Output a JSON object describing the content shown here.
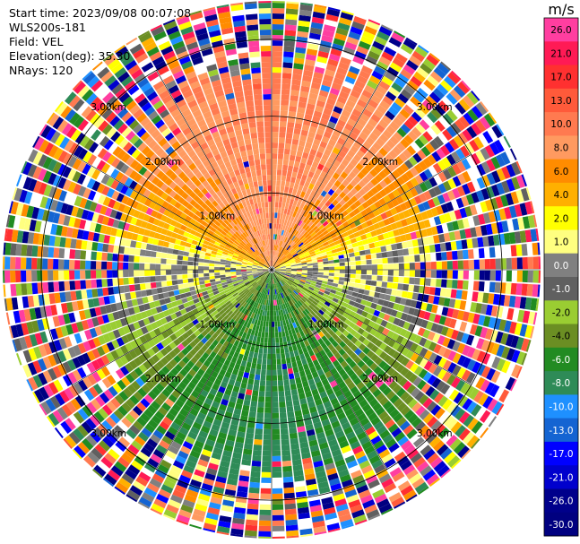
{
  "header": {
    "start_time": "Start time: 2023/09/08 00:07:08",
    "instrument": "WLS200s-181",
    "field": "Field: VEL",
    "elevation": "Elevation(deg): 35.30",
    "nrays": "NRays: 120"
  },
  "colorbar": {
    "unit": "m/s",
    "ticks": [
      "26.0",
      "21.0",
      "17.0",
      "13.0",
      "10.0",
      "8.0",
      "6.0",
      "4.0",
      "2.0",
      "1.0",
      "0.0",
      "-1.0",
      "-2.0",
      "-4.0",
      "-6.0",
      "-8.0",
      "-10.0",
      "-13.0",
      "-17.0",
      "-21.0",
      "-26.0",
      "-30.0"
    ],
    "colors": [
      "#ff3ea0",
      "#ff1a55",
      "#ff3030",
      "#ff5a3a",
      "#ff7a50",
      "#ff9a60",
      "#ff8c00",
      "#ffb000",
      "#ffff00",
      "#ffff80",
      "#808080",
      "#606060",
      "#9acd32",
      "#6b8e23",
      "#228b22",
      "#2e8b57",
      "#1e90ff",
      "#1464d2",
      "#0000ff",
      "#0000cd",
      "#00008b",
      "#000080"
    ]
  },
  "chart_data": {
    "type": "ppi",
    "field": "VEL",
    "units": "m/s",
    "nrays": 120,
    "elevation_deg": 35.3,
    "vmin": -30.0,
    "vmax": 26.0,
    "range_rings_km": [
      1.0,
      2.0,
      3.0
    ],
    "ring_labels": [
      "1.00km",
      "2.00km",
      "3.00km"
    ],
    "valid_range_km": 2.55,
    "north_sector_velocity_ms": 8.0,
    "south_sector_velocity_ms": -8.0,
    "near_horizontal_velocity_ms": 0.0,
    "outer_region": "noise"
  }
}
